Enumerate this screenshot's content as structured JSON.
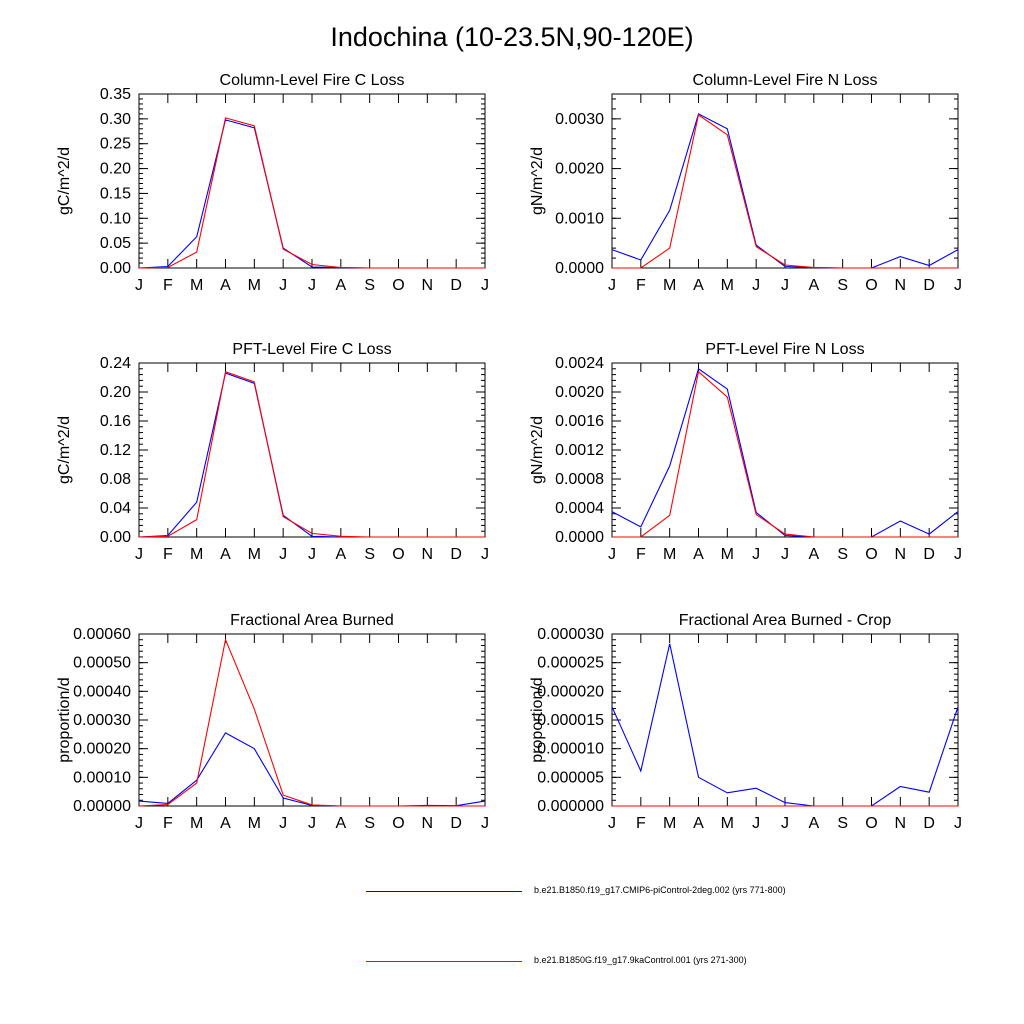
{
  "figure": {
    "title": "Indochina (10-23.5N,90-120E)"
  },
  "colors": {
    "series_1": "#0000ff",
    "series_2": "#ff0000",
    "axis": "#000000"
  },
  "legend": [
    {
      "label": "b.e21.B1850.f19_g17.CMIP6-piControl-2deg.002 (yrs 771-800)",
      "color": "#0000ff"
    },
    {
      "label": "b.e21.B1850G.f19_g17.9kaControl.001 (yrs 271-300)",
      "color": "#ff0000"
    }
  ],
  "chart_data": [
    {
      "type": "line",
      "title": "Column-Level Fire C Loss",
      "xlabel": "",
      "ylabel": "gC/m^2/d",
      "categories": [
        "J",
        "F",
        "M",
        "A",
        "M",
        "J",
        "J",
        "A",
        "S",
        "O",
        "N",
        "D",
        "J"
      ],
      "ylim": [
        0,
        0.35
      ],
      "yticks": [
        "0.00",
        "0.05",
        "0.10",
        "0.15",
        "0.20",
        "0.25",
        "0.30",
        "0.35"
      ],
      "series": [
        {
          "name": "b.e21.B1850.f19_g17.CMIP6-piControl-2deg.002 (yrs 771-800)",
          "values": [
            0.0,
            0.003,
            0.063,
            0.298,
            0.282,
            0.04,
            0.002,
            0.001,
            0.0,
            0.0,
            0.0,
            0.0,
            0.0
          ]
        },
        {
          "name": "b.e21.B1850G.f19_g17.9kaControl.001 (yrs 271-300)",
          "values": [
            0.0,
            0.001,
            0.032,
            0.302,
            0.286,
            0.038,
            0.007,
            0.001,
            0.0,
            0.0,
            0.0,
            0.0,
            0.0
          ]
        }
      ]
    },
    {
      "type": "line",
      "title": "Column-Level Fire N Loss",
      "xlabel": "",
      "ylabel": "gN/m^2/d",
      "categories": [
        "J",
        "F",
        "M",
        "A",
        "M",
        "J",
        "J",
        "A",
        "S",
        "O",
        "N",
        "D",
        "J"
      ],
      "ylim": [
        0,
        0.0035
      ],
      "yticks": [
        "0.0000",
        "0.0010",
        "0.0020",
        "0.0030"
      ],
      "yticks_values": [
        0,
        0.001,
        0.002,
        0.003
      ],
      "series": [
        {
          "name": "b.e21.B1850.f19_g17.CMIP6-piControl-2deg.002 (yrs 771-800)",
          "values": [
            0.00037,
            0.00016,
            0.00116,
            0.0031,
            0.0028,
            0.00046,
            3e-05,
            1e-05,
            0.0,
            0.0,
            0.00023,
            5e-05,
            0.00037
          ]
        },
        {
          "name": "b.e21.B1850G.f19_g17.9kaControl.001 (yrs 271-300)",
          "values": [
            0.0,
            0.0,
            0.0004,
            0.00308,
            0.00268,
            0.00043,
            6e-05,
            1e-05,
            0.0,
            0.0,
            0.0,
            0.0,
            0.0
          ]
        }
      ]
    },
    {
      "type": "line",
      "title": "PFT-Level Fire C Loss",
      "xlabel": "",
      "ylabel": "gC/m^2/d",
      "categories": [
        "J",
        "F",
        "M",
        "A",
        "M",
        "J",
        "J",
        "A",
        "S",
        "O",
        "N",
        "D",
        "J"
      ],
      "ylim": [
        0,
        0.24
      ],
      "yticks": [
        "0.00",
        "0.04",
        "0.08",
        "0.12",
        "0.16",
        "0.20",
        "0.24"
      ],
      "series": [
        {
          "name": "b.e21.B1850.f19_g17.CMIP6-piControl-2deg.002 (yrs 771-800)",
          "values": [
            0.0,
            0.002,
            0.048,
            0.226,
            0.212,
            0.03,
            0.001,
            0.0,
            0.0,
            0.0,
            0.0,
            0.0,
            0.0
          ]
        },
        {
          "name": "b.e21.B1850G.f19_g17.9kaControl.001 (yrs 271-300)",
          "values": [
            0.0,
            0.001,
            0.024,
            0.228,
            0.214,
            0.028,
            0.005,
            0.001,
            0.0,
            0.0,
            0.0,
            0.0,
            0.0
          ]
        }
      ]
    },
    {
      "type": "line",
      "title": "PFT-Level Fire N Loss",
      "xlabel": "",
      "ylabel": "gN/m^2/d",
      "categories": [
        "J",
        "F",
        "M",
        "A",
        "M",
        "J",
        "J",
        "A",
        "S",
        "O",
        "N",
        "D",
        "J"
      ],
      "ylim": [
        0,
        0.0024
      ],
      "yticks": [
        "0.0000",
        "0.0004",
        "0.0008",
        "0.0012",
        "0.0016",
        "0.0020",
        "0.0024"
      ],
      "series": [
        {
          "name": "b.e21.B1850.f19_g17.CMIP6-piControl-2deg.002 (yrs 771-800)",
          "values": [
            0.00035,
            0.00014,
            0.00098,
            0.00232,
            0.00204,
            0.00034,
            2e-05,
            0.0,
            0.0,
            0.0,
            0.00022,
            4e-05,
            0.00035
          ]
        },
        {
          "name": "b.e21.B1850G.f19_g17.9kaControl.001 (yrs 271-300)",
          "values": [
            0.0,
            0.0,
            0.0003,
            0.00228,
            0.00193,
            0.00031,
            4e-05,
            0.0,
            0.0,
            0.0,
            0.0,
            0.0,
            0.0
          ]
        }
      ]
    },
    {
      "type": "line",
      "title": "Fractional Area Burned",
      "xlabel": "",
      "ylabel": "proportion/d",
      "categories": [
        "J",
        "F",
        "M",
        "A",
        "M",
        "J",
        "J",
        "A",
        "S",
        "O",
        "N",
        "D",
        "J"
      ],
      "ylim": [
        0,
        0.0006
      ],
      "yticks": [
        "0.00000",
        "0.00010",
        "0.00020",
        "0.00030",
        "0.00040",
        "0.00050",
        "0.00060"
      ],
      "series": [
        {
          "name": "b.e21.B1850.f19_g17.CMIP6-piControl-2deg.002 (yrs 771-800)",
          "values": [
            1.7e-05,
            9e-06,
            9e-05,
            0.000255,
            0.0002,
            2.8e-05,
            2e-06,
            0.0,
            0.0,
            0.0,
            2e-06,
            1e-06,
            1.7e-05
          ]
        },
        {
          "name": "b.e21.B1850G.f19_g17.9kaControl.001 (yrs 271-300)",
          "values": [
            0.0,
            5e-06,
            8e-05,
            0.00058,
            0.000338,
            3.8e-05,
            4e-06,
            0.0,
            0.0,
            0.0,
            0.0,
            0.0,
            0.0
          ]
        }
      ]
    },
    {
      "type": "line",
      "title": "Fractional Area Burned - Crop",
      "xlabel": "",
      "ylabel": "proportion/d",
      "categories": [
        "J",
        "F",
        "M",
        "A",
        "M",
        "J",
        "J",
        "A",
        "S",
        "O",
        "N",
        "D",
        "J"
      ],
      "ylim": [
        0,
        3e-05
      ],
      "yticks": [
        "0.000000",
        "0.000005",
        "0.000010",
        "0.000015",
        "0.000020",
        "0.000025",
        "0.000030"
      ],
      "series": [
        {
          "name": "b.e21.B1850.f19_g17.CMIP6-piControl-2deg.002 (yrs 771-800)",
          "values": [
            1.73e-05,
            6.1e-06,
            2.83e-05,
            5e-06,
            2.3e-06,
            3.1e-06,
            6e-07,
            0.0,
            0.0,
            0.0,
            3.4e-06,
            2.4e-06,
            1.73e-05
          ]
        },
        {
          "name": "b.e21.B1850G.f19_g17.9kaControl.001 (yrs 271-300)",
          "values": [
            0.0,
            0.0,
            0.0,
            0.0,
            0.0,
            0.0,
            0.0,
            0.0,
            0.0,
            0.0,
            0.0,
            0.0,
            0.0
          ]
        }
      ]
    }
  ]
}
